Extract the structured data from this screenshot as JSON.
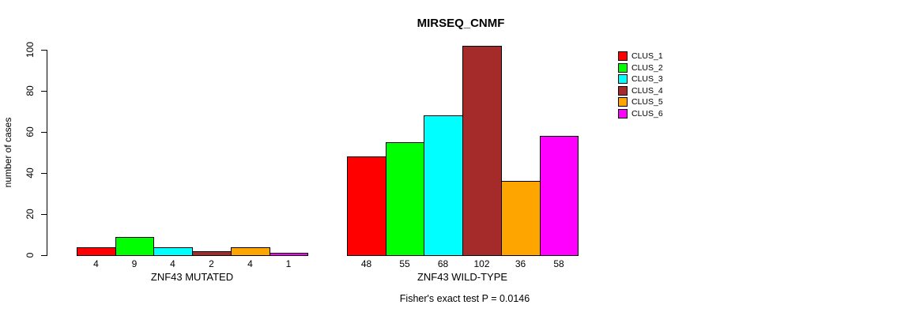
{
  "chart_data": {
    "type": "bar",
    "title": "MIRSEQ_CNMF",
    "ylabel": "number of cases",
    "ylim": [
      0,
      100
    ],
    "yticks": [
      0,
      20,
      40,
      60,
      80,
      100
    ],
    "ytick_labels": [
      "0",
      "20",
      "40",
      "60",
      "80",
      "100"
    ],
    "grid": false,
    "legend_position": "right-inside",
    "categories": [
      "ZNF43 MUTATED",
      "ZNF43 WILD-TYPE"
    ],
    "groups": [
      {
        "label": "ZNF43 MUTATED",
        "values": [
          4,
          9,
          4,
          2,
          4,
          1
        ],
        "value_labels": [
          "4",
          "9",
          "4",
          "2",
          "4",
          "1"
        ]
      },
      {
        "label": "ZNF43 WILD-TYPE",
        "values": [
          48,
          55,
          68,
          102,
          36,
          58
        ],
        "value_labels": [
          "48",
          "55",
          "68",
          "102",
          "36",
          "58"
        ]
      }
    ],
    "series": [
      {
        "name": "CLUS_1",
        "color": "#FF0000"
      },
      {
        "name": "CLUS_2",
        "color": "#00FF00"
      },
      {
        "name": "CLUS_3",
        "color": "#00FFFF"
      },
      {
        "name": "CLUS_4",
        "color": "#A52A2A"
      },
      {
        "name": "CLUS_5",
        "color": "#FFA500"
      },
      {
        "name": "CLUS_6",
        "color": "#FF00FF"
      }
    ],
    "footnote": "Fisher's exact test P = 0.0146",
    "colors": {
      "axis": "#000000",
      "background": "#ffffff",
      "text": "#000000"
    }
  }
}
